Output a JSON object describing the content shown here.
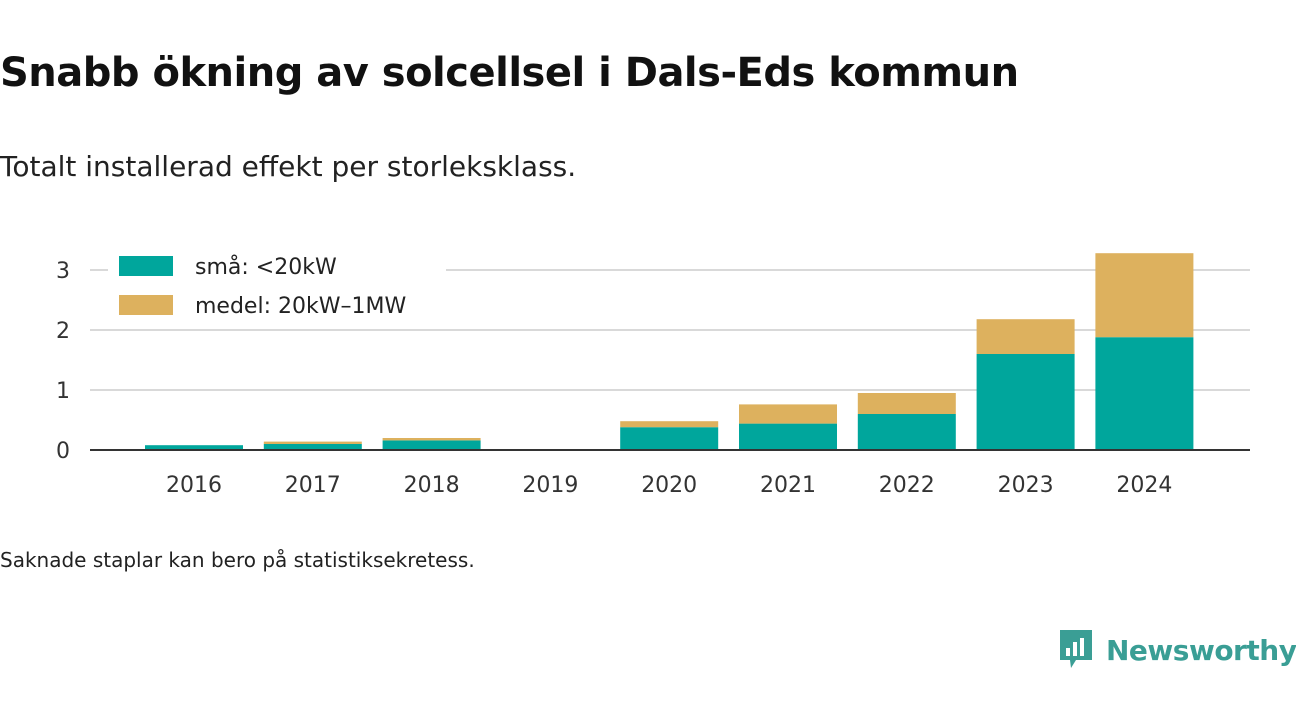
{
  "header": {
    "title": "Snabb ökning av solcellsel i Dals-Eds kommun",
    "subtitle": "Totalt installerad effekt per storleksklass."
  },
  "footer": {
    "note": "Saknade staplar kan bero på statistiksekretess.",
    "brand": "Newsworthy"
  },
  "colors": {
    "small": "#00a69c",
    "medium": "#ddb15e",
    "brand": "#3a9e95"
  },
  "chart_data": {
    "type": "bar",
    "stacked": true,
    "categories": [
      "2016",
      "2017",
      "2018",
      "2019",
      "2020",
      "2021",
      "2022",
      "2023",
      "2024"
    ],
    "series": [
      {
        "name": "små: <20kW",
        "color": "#00a69c",
        "values": [
          0.08,
          0.1,
          0.16,
          0,
          0.38,
          0.44,
          0.6,
          1.6,
          1.88
        ]
      },
      {
        "name": "medel: 20kW–1MW",
        "color": "#ddb15e",
        "values": [
          0.0,
          0.04,
          0.04,
          0,
          0.1,
          0.32,
          0.35,
          0.58,
          1.4
        ]
      }
    ],
    "yticks": [
      0,
      1,
      2,
      3
    ],
    "ylim": [
      0,
      3.3
    ],
    "grid": true,
    "legend_position": "top-left"
  }
}
